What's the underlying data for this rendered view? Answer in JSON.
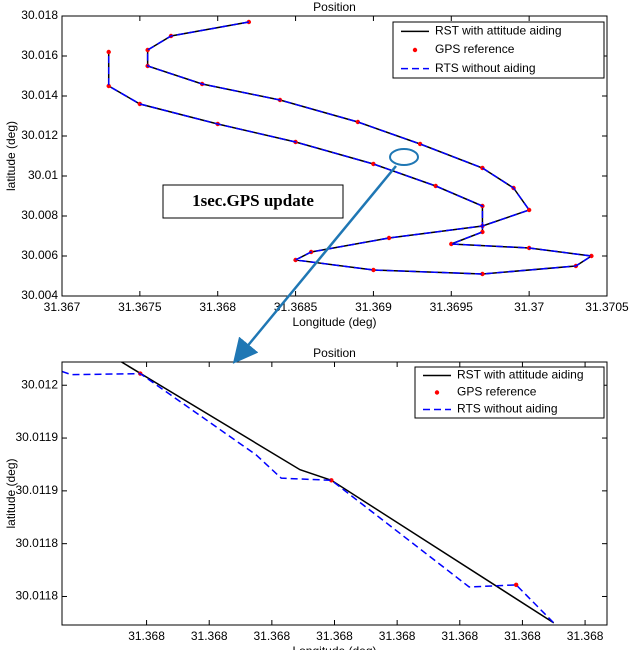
{
  "chart_data": [
    {
      "type": "line",
      "title": "Position",
      "xlabel": "Longitude (deg)",
      "ylabel": "latitude (deg)",
      "annotation": "1sec.GPS update",
      "xlim": [
        31.367,
        31.3705
      ],
      "xticks": [
        31.367,
        31.3675,
        31.368,
        31.3685,
        31.369,
        31.3695,
        31.37,
        31.3705
      ],
      "ylim": [
        30.004,
        30.018
      ],
      "yticks": [
        30.004,
        30.006,
        30.008,
        30.01,
        30.012,
        30.014,
        30.016,
        30.018
      ],
      "legend": "upper right",
      "series": [
        {
          "name": "RST with attitude aiding",
          "color": "#000000",
          "style": "solid",
          "x": [
            31.3682,
            31.3677,
            31.36755,
            31.36755,
            31.3679,
            31.3684,
            31.3689,
            31.3693,
            31.3697,
            31.3699,
            31.37,
            31.3697,
            31.3691,
            31.3686,
            31.3685,
            31.369,
            31.3697,
            31.3703,
            31.3704,
            31.37,
            31.3695,
            31.3697,
            31.3697,
            31.3694,
            31.369,
            31.3685,
            31.368,
            31.3675,
            31.3673,
            31.3673
          ],
          "values": [
            30.0177,
            30.017,
            30.0163,
            30.0155,
            30.0146,
            30.0138,
            30.0127,
            30.0116,
            30.0104,
            30.0094,
            30.0083,
            30.0075,
            30.0069,
            30.0062,
            30.0058,
            30.0053,
            30.0051,
            30.0055,
            30.006,
            30.0064,
            30.0066,
            30.0072,
            30.0085,
            30.0095,
            30.0106,
            30.0117,
            30.0126,
            30.0136,
            30.0145,
            30.0162
          ]
        },
        {
          "name": "GPS reference",
          "color": "#ff0000",
          "style": "dots",
          "x": [
            31.3682,
            31.3677,
            31.36755,
            31.36755,
            31.3679,
            31.3684,
            31.3689,
            31.3693,
            31.3697,
            31.3699,
            31.37,
            31.3697,
            31.3691,
            31.3686,
            31.3685,
            31.369,
            31.3697,
            31.3703,
            31.3704,
            31.37,
            31.3695,
            31.3697,
            31.3697,
            31.3694,
            31.369,
            31.3685,
            31.368,
            31.3675,
            31.3673,
            31.3673
          ],
          "values": [
            30.0177,
            30.017,
            30.0163,
            30.0155,
            30.0146,
            30.0138,
            30.0127,
            30.0116,
            30.0104,
            30.0094,
            30.0083,
            30.0075,
            30.0069,
            30.0062,
            30.0058,
            30.0053,
            30.0051,
            30.0055,
            30.006,
            30.0064,
            30.0066,
            30.0072,
            30.0085,
            30.0095,
            30.0106,
            30.0117,
            30.0126,
            30.0136,
            30.0145,
            30.0162
          ]
        },
        {
          "name": "RTS without aiding",
          "color": "#0000ff",
          "style": "dashed",
          "x": [
            31.3682,
            31.3677,
            31.36755,
            31.36755,
            31.3679,
            31.3684,
            31.3689,
            31.3693,
            31.3697,
            31.3699,
            31.37,
            31.3697,
            31.3691,
            31.3686,
            31.3685,
            31.369,
            31.3697,
            31.3703,
            31.3704,
            31.37,
            31.3695,
            31.3697,
            31.3697,
            31.3694,
            31.369,
            31.3685,
            31.368,
            31.3675,
            31.3673,
            31.3673
          ],
          "values": [
            30.0177,
            30.017,
            30.0163,
            30.0155,
            30.0146,
            30.0138,
            30.0127,
            30.0116,
            30.0104,
            30.0094,
            30.0083,
            30.0075,
            30.0069,
            30.0062,
            30.0058,
            30.0053,
            30.0051,
            30.0055,
            30.006,
            30.0064,
            30.0066,
            30.0072,
            30.0085,
            30.0095,
            30.0106,
            30.0117,
            30.0126,
            30.0136,
            30.0145,
            30.0162
          ]
        }
      ]
    },
    {
      "type": "line",
      "title": "Position",
      "xlabel": "Longitude (deg)",
      "ylabel": "latitude (deg)",
      "xlim": [
        31.367993,
        31.368167
      ],
      "xticks": [
        {
          "value": 31.36802,
          "label": "31.368"
        },
        {
          "value": 31.36804,
          "label": "31.368"
        },
        {
          "value": 31.36806,
          "label": "31.368"
        },
        {
          "value": 31.36808,
          "label": "31.368"
        },
        {
          "value": 31.3681,
          "label": "31.368"
        },
        {
          "value": 31.36812,
          "label": "31.368"
        },
        {
          "value": 31.36814,
          "label": "31.368"
        },
        {
          "value": 31.36816,
          "label": "31.368"
        }
      ],
      "ylim": [
        30.011743,
        30.011992
      ],
      "yticks": [
        {
          "value": 30.01177,
          "label": "30.0118"
        },
        {
          "value": 30.01182,
          "label": "30.0118"
        },
        {
          "value": 30.01187,
          "label": "30.0119"
        },
        {
          "value": 30.01192,
          "label": "30.0119"
        },
        {
          "value": 30.01197,
          "label": "30.012"
        }
      ],
      "legend": "upper right",
      "series": [
        {
          "name": "RST with attitude aiding",
          "color": "#000000",
          "style": "solid",
          "x": [
            31.368012,
            31.368069,
            31.368079,
            31.36815
          ],
          "values": [
            30.011992,
            30.01189,
            30.01188,
            30.011745
          ]
        },
        {
          "name": "GPS reference",
          "color": "#ff0000",
          "style": "dots",
          "x": [
            31.368018,
            31.368079,
            31.368138
          ],
          "values": [
            30.011981,
            30.01188,
            30.011781
          ]
        },
        {
          "name": "RTS without aiding",
          "color": "#0000ff",
          "style": "dashed",
          "x": [
            31.367993,
            31.367996,
            31.368018,
            31.368055,
            31.368063,
            31.368079,
            31.368123,
            31.368138,
            31.36815
          ],
          "values": [
            30.011983,
            30.01198,
            30.011981,
            30.011904,
            30.011882,
            30.01188,
            30.011779,
            30.011781,
            30.011745
          ]
        }
      ]
    }
  ]
}
